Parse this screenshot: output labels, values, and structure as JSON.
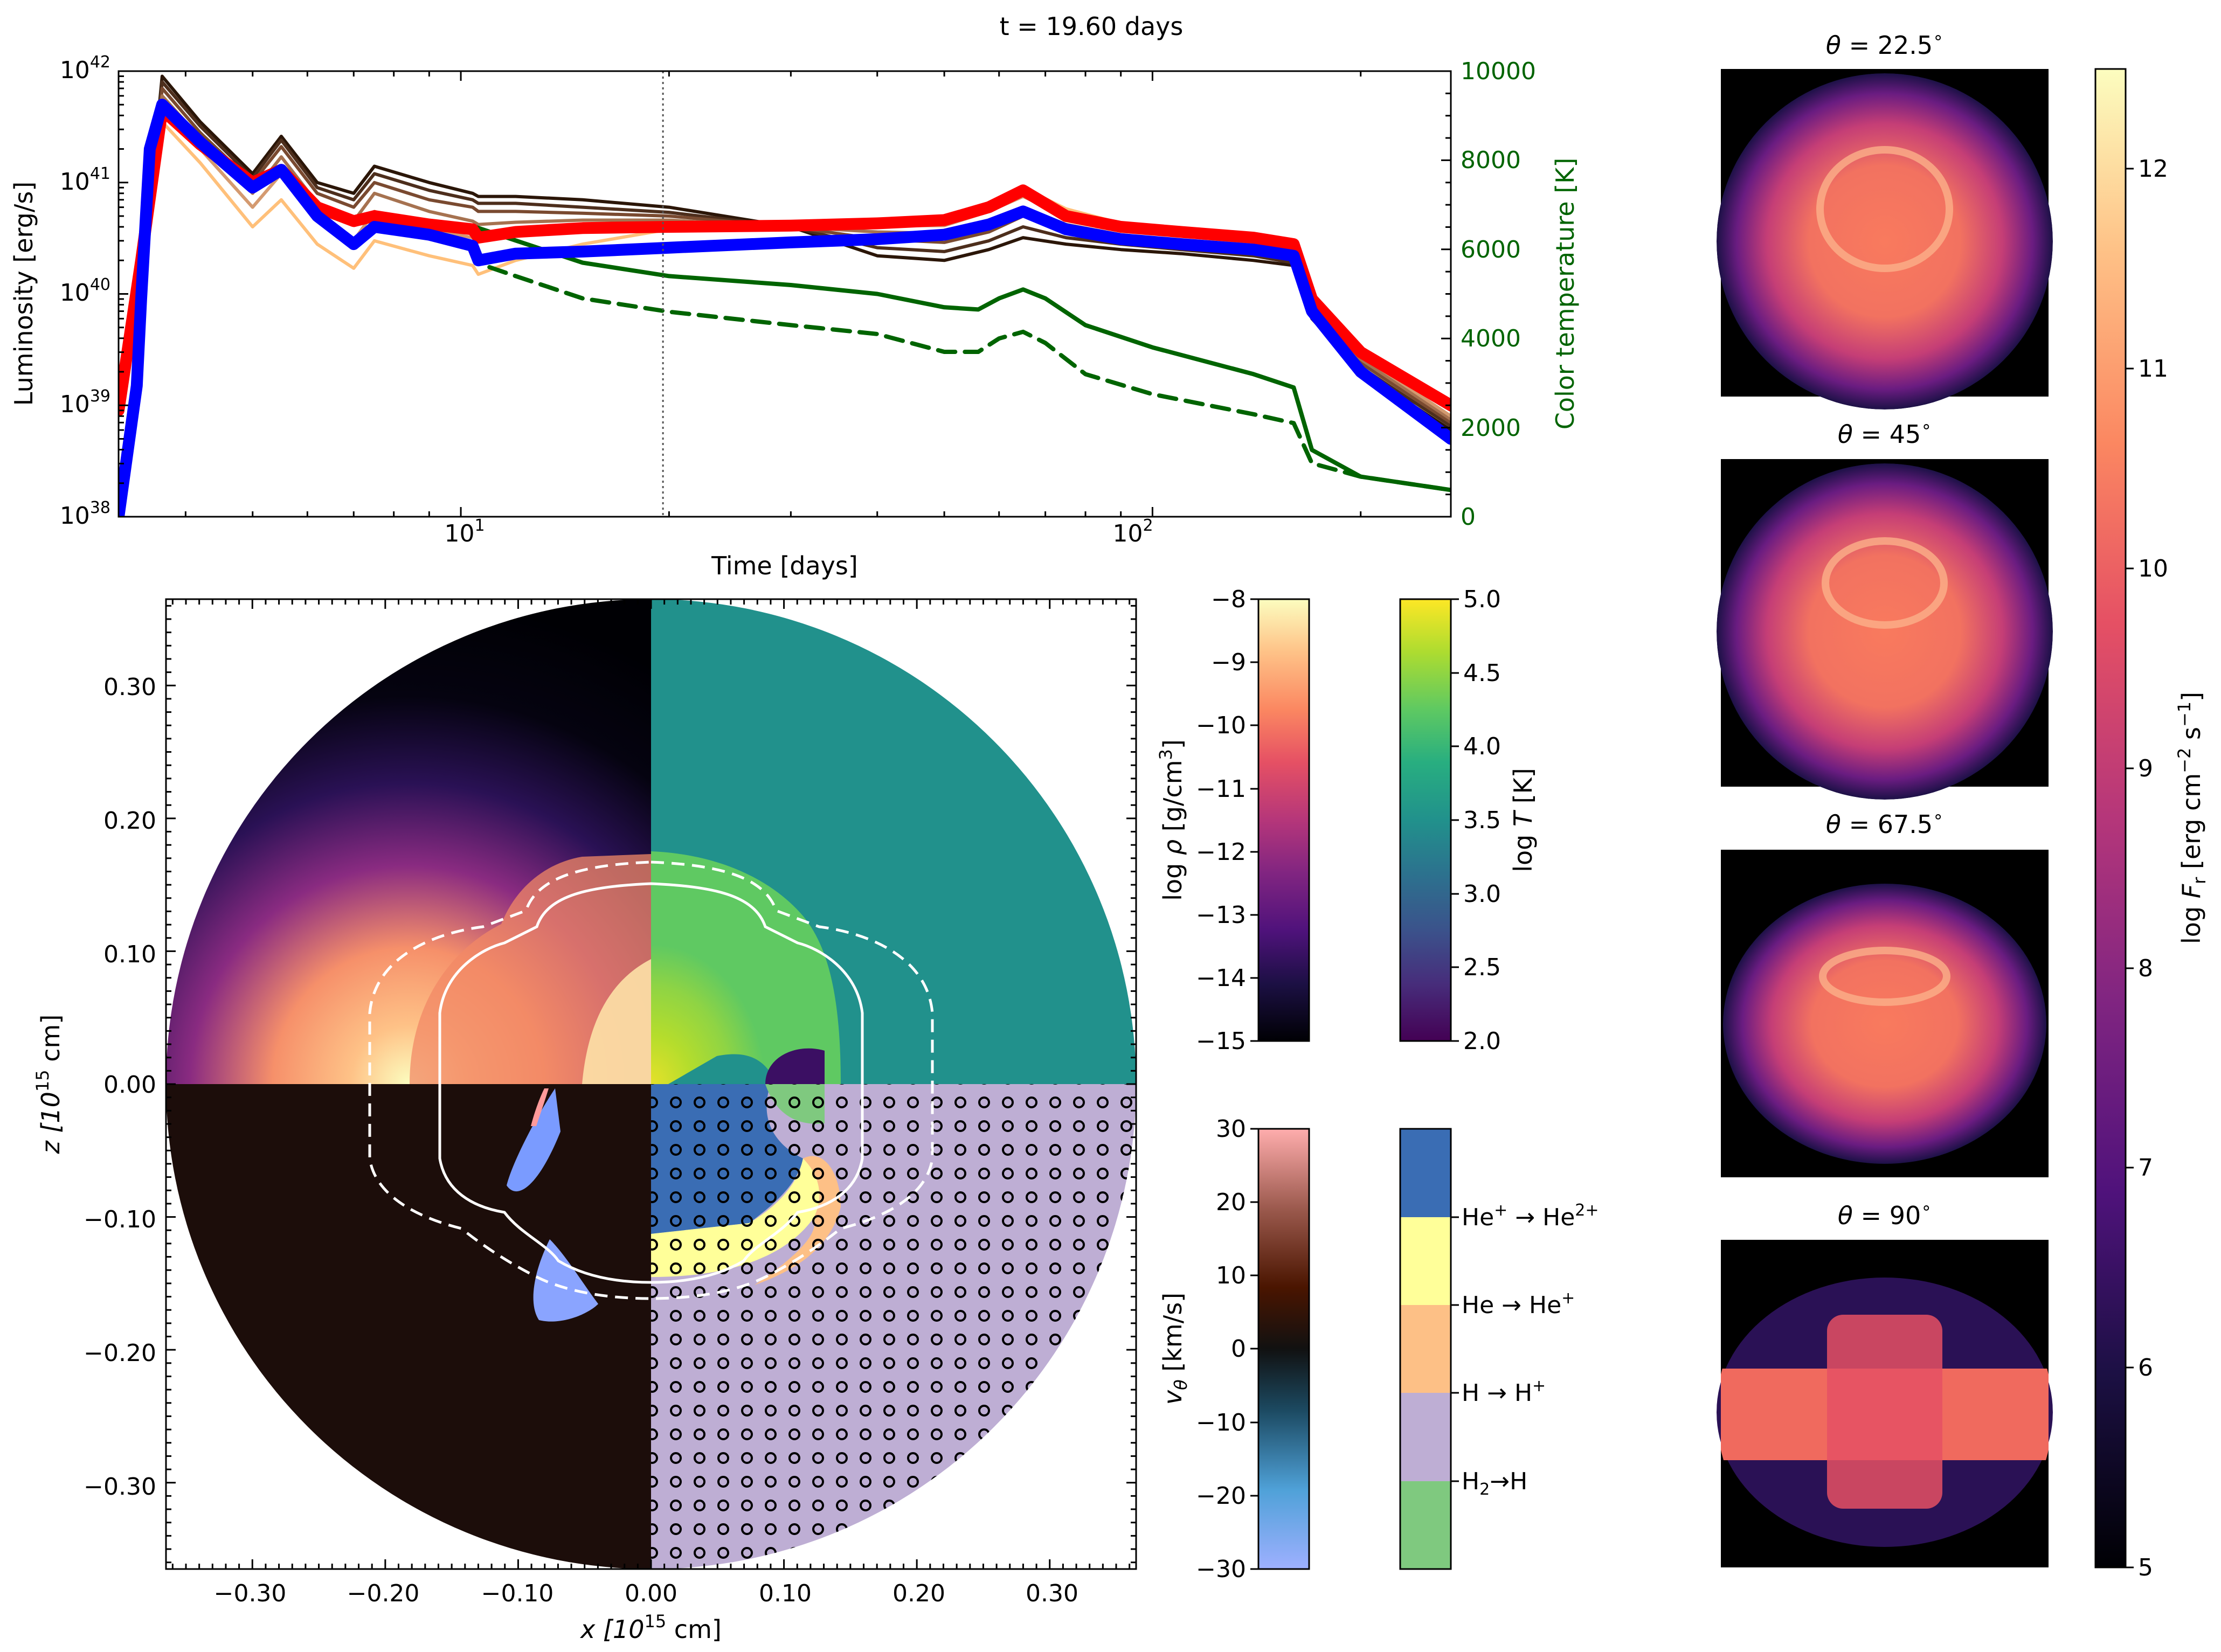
{
  "header": {
    "time_label": "t = 19.60 days"
  },
  "light_curve": {
    "xlabel": "Time [days]",
    "ylabel_left": "Luminosity [erg/s]",
    "ylabel_right": "Color temperature [K]",
    "x_ticks": [
      {
        "base": "10",
        "exp": "1"
      },
      {
        "base": "10",
        "exp": "2"
      }
    ],
    "y_ticks_left": [
      {
        "base": "10",
        "exp": "38"
      },
      {
        "base": "10",
        "exp": "39"
      },
      {
        "base": "10",
        "exp": "40"
      },
      {
        "base": "10",
        "exp": "41"
      },
      {
        "base": "10",
        "exp": "42"
      }
    ],
    "y_ticks_right": [
      "0",
      "2000",
      "4000",
      "6000",
      "8000",
      "10000"
    ],
    "colors": {
      "accent_red": "#ff0000",
      "accent_blue": "#0000ff",
      "temp_green": "#006400"
    }
  },
  "chart_data": [
    {
      "type": "line",
      "panel": "light-curve",
      "x_scale": "log",
      "xlim": [
        3.2,
        270
      ],
      "ylim": [
        1e+38,
        1e+42
      ],
      "y_scale": "log",
      "y2lim": [
        0,
        10000
      ],
      "marker_time": 19.6,
      "series": [
        {
          "color": "#ff0000",
          "axis": "left",
          "x": [
            3.2,
            3.45,
            3.7,
            4.2,
            5,
            5.5,
            6.2,
            7,
            7.5,
            9,
            10.4,
            10.6,
            12,
            15,
            20,
            30,
            40,
            50,
            58,
            65,
            75,
            90,
            110,
            140,
            160,
            170,
            200,
            270
          ],
          "y": [
            9e+38,
            2e+40,
            4.5e+41,
            2.2e+41,
            1e+41,
            1.3e+41,
            6e+40,
            4.5e+40,
            5e+40,
            4.2e+40,
            3.8e+40,
            3.2e+40,
            3.6e+40,
            3.9e+40,
            4e+40,
            4.1e+40,
            4.3e+40,
            4.6e+40,
            6e+40,
            8.5e+40,
            5e+40,
            4e+40,
            3.6e+40,
            3.2e+40,
            2.8e+40,
            9e+39,
            3e+39,
            1e+39
          ]
        },
        {
          "color": "#0000ff",
          "axis": "left",
          "x": [
            3.2,
            3.4,
            3.45,
            3.55,
            3.7,
            4.2,
            5,
            5.5,
            6.2,
            7,
            7.5,
            9,
            10.4,
            10.6,
            12,
            15,
            20,
            30,
            40,
            50,
            58,
            65,
            75,
            90,
            110,
            140,
            160,
            170,
            200,
            270
          ],
          "y": [
            1e+38,
            1.5e+39,
            9e+39,
            2e+41,
            5e+41,
            2.3e+41,
            9e+40,
            1.3e+41,
            5e+40,
            2.8e+40,
            4e+40,
            3.4e+40,
            2.7e+40,
            2e+40,
            2.3e+40,
            2.4e+40,
            2.6e+40,
            2.9e+40,
            3.1e+40,
            3.4e+40,
            4.2e+40,
            5.5e+40,
            3.8e+40,
            3.1e+40,
            2.8e+40,
            2.5e+40,
            2.2e+40,
            7e+39,
            2e+39,
            5e+38
          ]
        },
        {
          "color": "#2b1608",
          "axis": "left",
          "x": [
            3.2,
            3.45,
            3.7,
            4.2,
            5,
            5.5,
            6.2,
            7,
            7.5,
            9,
            10.4,
            10.6,
            12,
            15,
            20,
            30,
            40,
            50,
            58,
            65,
            75,
            90,
            110,
            140,
            160,
            170,
            200,
            270
          ],
          "y": [
            1e+39,
            1e+40,
            9e+41,
            3.5e+41,
            1.2e+41,
            2.6e+41,
            1e+41,
            8e+40,
            1.4e+41,
            1e+41,
            8e+40,
            7.5e+40,
            7.5e+40,
            7e+40,
            6e+40,
            4e+40,
            2.2e+40,
            2e+40,
            2.5e+40,
            3.2e+40,
            2.8e+40,
            2.5e+40,
            2.3e+40,
            2e+40,
            1.8e+40,
            6e+39,
            2e+39,
            6e+38
          ]
        },
        {
          "color": "#4d2e1c",
          "axis": "left",
          "x": [
            3.2,
            3.45,
            3.7,
            4.2,
            5,
            5.5,
            6.2,
            7,
            7.5,
            9,
            10.4,
            10.6,
            12,
            15,
            20,
            30,
            40,
            50,
            58,
            65,
            75,
            90,
            110,
            140,
            160,
            170,
            200,
            270
          ],
          "y": [
            1e+39,
            9e+39,
            8e+41,
            3.2e+41,
            1.1e+41,
            2.4e+41,
            9e+40,
            7e+40,
            1.2e+41,
            8.5e+40,
            7e+40,
            6.5e+40,
            6.5e+40,
            6e+40,
            5.4e+40,
            4e+40,
            2.6e+40,
            2.4e+40,
            3e+40,
            4e+40,
            3.2e+40,
            2.8e+40,
            2.5e+40,
            2.2e+40,
            1.9e+40,
            6.5e+39,
            2.2e+39,
            6.5e+38
          ]
        },
        {
          "color": "#7a4a30",
          "axis": "left",
          "x": [
            3.2,
            3.45,
            3.7,
            4.2,
            5,
            5.5,
            6.2,
            7,
            7.5,
            9,
            10.4,
            10.6,
            12,
            15,
            20,
            30,
            40,
            50,
            58,
            65,
            75,
            90,
            110,
            140,
            160,
            170,
            200,
            270
          ],
          "y": [
            1e+39,
            9e+39,
            7e+41,
            2.8e+41,
            1e+41,
            2.1e+41,
            8e+40,
            6e+40,
            1e+41,
            7e+40,
            6e+40,
            5.5e+40,
            5.5e+40,
            5.3e+40,
            5e+40,
            4e+40,
            3.1e+40,
            2.9e+40,
            3.6e+40,
            5e+40,
            3.6e+40,
            3e+40,
            2.7e+40,
            2.4e+40,
            2.1e+40,
            7e+39,
            2.4e+39,
            7e+38
          ]
        },
        {
          "color": "#a67250",
          "axis": "left",
          "x": [
            3.2,
            3.45,
            3.7,
            4.2,
            5,
            5.5,
            6.2,
            7,
            7.5,
            9,
            10.4,
            10.6,
            12,
            15,
            20,
            30,
            40,
            50,
            58,
            65,
            75,
            90,
            110,
            140,
            160,
            170,
            200,
            270
          ],
          "y": [
            1e+39,
            9e+39,
            6e+41,
            2.5e+41,
            8e+40,
            1.7e+41,
            6.5e+40,
            4.5e+40,
            8e+40,
            5.5e+40,
            4.5e+40,
            4.2e+40,
            4.4e+40,
            4.6e+40,
            4.6e+40,
            4e+40,
            3.6e+40,
            3.5e+40,
            4.4e+40,
            6e+40,
            4.2e+40,
            3.4e+40,
            3e+40,
            2.6e+40,
            2.3e+40,
            7.5e+39,
            2.6e+39,
            7.5e+38
          ]
        },
        {
          "color": "#d49a70",
          "axis": "left",
          "x": [
            3.2,
            3.45,
            3.7,
            4.2,
            5,
            5.5,
            6.2,
            7,
            7.5,
            9,
            10.4,
            10.6,
            12,
            15,
            20,
            30,
            40,
            50,
            58,
            65,
            75,
            90,
            110,
            140,
            160,
            170,
            200,
            270
          ],
          "y": [
            1e+39,
            9e+39,
            5e+41,
            2e+41,
            6e+40,
            1.2e+41,
            4.5e+40,
            3e+40,
            5.5e+40,
            3.8e+40,
            3.2e+40,
            3e+40,
            3.4e+40,
            3.8e+40,
            4.2e+40,
            4.1e+40,
            4.1e+40,
            4.1e+40,
            5.5e+40,
            7.5e+40,
            5e+40,
            3.8e+40,
            3.3e+40,
            2.9e+40,
            2.5e+40,
            8e+39,
            2.8e+39,
            8e+38
          ]
        },
        {
          "color": "#ffc07a",
          "axis": "left",
          "x": [
            3.2,
            3.45,
            3.7,
            4.2,
            5,
            5.5,
            6.2,
            7,
            7.5,
            9,
            10.4,
            10.6,
            12,
            15,
            20,
            30,
            40,
            50,
            58,
            65,
            75,
            90,
            110,
            140,
            160,
            170,
            200,
            270
          ],
          "y": [
            1e+39,
            8e+39,
            3.5e+41,
            1.5e+41,
            4e+40,
            7e+40,
            2.8e+40,
            1.7e+40,
            3e+40,
            2.2e+40,
            1.8e+40,
            1.5e+40,
            2e+40,
            2.8e+40,
            3.8e+40,
            4.2e+40,
            4.5e+40,
            4.9e+40,
            6.5e+40,
            9e+40,
            5.8e+40,
            4.3e+40,
            3.7e+40,
            3.2e+40,
            2.8e+40,
            9e+39,
            3e+39,
            9e+38
          ]
        },
        {
          "color": "#006400",
          "axis": "right",
          "style": "solid",
          "x": [
            10.5,
            12,
            15,
            20,
            30,
            40,
            50,
            56,
            60,
            65,
            70,
            80,
            100,
            140,
            160,
            170,
            200,
            270
          ],
          "y": [
            6500,
            6200,
            5700,
            5400,
            5200,
            5000,
            4700,
            4650,
            4900,
            5100,
            4900,
            4300,
            3800,
            3200,
            2900,
            1500,
            900,
            600
          ]
        },
        {
          "color": "#006400",
          "axis": "right",
          "style": "dashed",
          "x": [
            11,
            12,
            15,
            20,
            30,
            40,
            50,
            56,
            60,
            65,
            70,
            80,
            100,
            140,
            160,
            170,
            200,
            270
          ],
          "y": [
            5600,
            5400,
            4900,
            4600,
            4300,
            4100,
            3700,
            3700,
            4000,
            4150,
            3900,
            3200,
            2750,
            2300,
            2100,
            1200,
            900,
            600
          ]
        }
      ]
    },
    {
      "type": "heatmap",
      "panel": "simulation-map",
      "xlabel_base": "x [10",
      "xlabel_exp": "15",
      "xlabel_tail": " cm]",
      "ylabel_base": "z [10",
      "ylabel_exp": "15",
      "ylabel_tail": " cm]",
      "xlim": [
        -0.365,
        0.365
      ],
      "ylim": [
        -0.365,
        0.365
      ],
      "x_ticks": [
        "−0.30",
        "−0.20",
        "−0.10",
        "0.00",
        "0.10",
        "0.20",
        "0.30"
      ],
      "y_ticks": [
        "0.30",
        "0.20",
        "0.10",
        "0.00",
        "−0.10",
        "−0.20",
        "−0.30"
      ],
      "quadrants": [
        "log rho",
        "log T",
        "v theta",
        "ionization"
      ]
    }
  ],
  "colorbars": {
    "density": {
      "label_pre": "log ",
      "label_sym": "ρ",
      "label_post": " [g/cm",
      "label_sup": "3",
      "label_end": "]",
      "ticks": [
        "−8",
        "−9",
        "−10",
        "−11",
        "−12",
        "−13",
        "−14",
        "−15"
      ],
      "range": [
        -15,
        -8
      ]
    },
    "temperature": {
      "label_pre": "log ",
      "label_sym": "T",
      "label_post": " [K]",
      "ticks": [
        "5.0",
        "4.5",
        "4.0",
        "3.5",
        "3.0",
        "2.5",
        "2.0"
      ],
      "range": [
        2.0,
        5.0
      ]
    },
    "velocity": {
      "label_sym": "v",
      "label_sub": "θ",
      "label_post": " [km/s]",
      "ticks": [
        "30",
        "20",
        "10",
        "0",
        "−10",
        "−20",
        "−30"
      ],
      "range": [
        -30,
        30
      ]
    },
    "ionization": {
      "categories": [
        {
          "a": "He",
          "asup": "+",
          "arrow": " → ",
          "b": "He",
          "bsup": "2+",
          "color": "#3a6db4"
        },
        {
          "a": "He",
          "asup": "",
          "arrow": " → ",
          "b": "He",
          "bsup": "+",
          "color": "#ffff99"
        },
        {
          "a": "H",
          "asup": "",
          "arrow": " → ",
          "b": "H",
          "bsup": "+",
          "color": "#fdc086"
        },
        {
          "a": "H",
          "asub": "2",
          "arrow": "→",
          "b": "H",
          "bsup": "",
          "color": "#beaed4"
        },
        {
          "a": "",
          "arrow": "",
          "b": "",
          "color": "#7fc97f"
        }
      ]
    },
    "flux": {
      "label_pre": "log ",
      "label_sym": "F",
      "label_sub": "r",
      "label_post": " [erg cm",
      "label_sup1": "−2",
      "label_mid": " s",
      "label_sup2": "−1",
      "label_end": "]",
      "ticks": [
        "12",
        "11",
        "10",
        "9",
        "8",
        "7",
        "6",
        "5"
      ],
      "range": [
        5,
        12.5
      ]
    }
  },
  "views": [
    {
      "theta": "22.5",
      "deg": "∘"
    },
    {
      "theta": "45",
      "deg": "∘"
    },
    {
      "theta": "67.5",
      "deg": "∘"
    },
    {
      "theta": "90",
      "deg": "∘"
    }
  ]
}
